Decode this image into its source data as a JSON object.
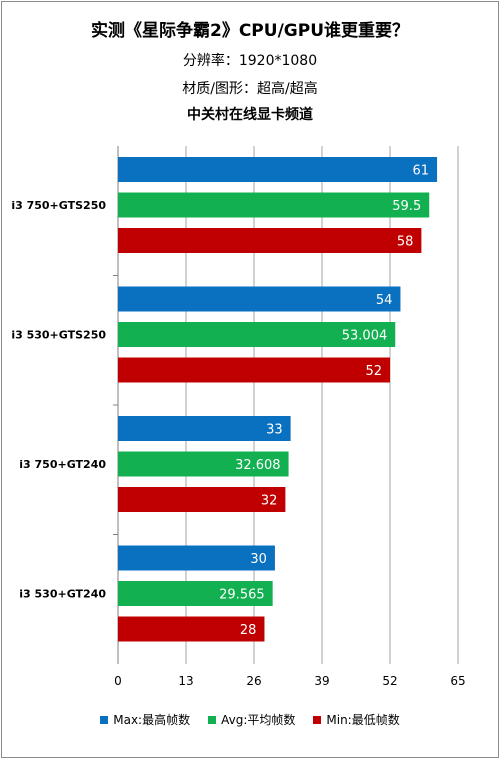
{
  "titles": {
    "main": "实测《星际争霸2》CPU/GPU谁更重要？",
    "resolution": "分辨率：1920*1080",
    "quality": "材质/图形：超高/超高",
    "source": "中关村在线显卡频道"
  },
  "colors": {
    "max": "#0a70c0",
    "avg": "#12b050",
    "min": "#c00000",
    "grid": "#a6a6a6"
  },
  "chart_data": {
    "type": "bar",
    "orientation": "horizontal",
    "categories": [
      "i3 750+GTS250",
      "i3 530+GTS250",
      "i3 750+GT240",
      "i3 530+GT240"
    ],
    "series": [
      {
        "name": "Max:最高帧数",
        "values": [
          61,
          54,
          33,
          30
        ],
        "labels": [
          "61",
          "54",
          "33",
          "30"
        ]
      },
      {
        "name": "Avg:平均帧数",
        "values": [
          59.5,
          53.004,
          32.608,
          29.565
        ],
        "labels": [
          "59.5",
          "53.004",
          "32.608",
          "29.565"
        ]
      },
      {
        "name": "Min:最低帧数",
        "values": [
          58,
          52,
          32,
          28
        ],
        "labels": [
          "58",
          "52",
          "32",
          "28"
        ]
      }
    ],
    "xlim": [
      0,
      65
    ],
    "xticks": [
      0,
      13,
      26,
      39,
      52,
      65
    ],
    "grid": true,
    "legend": "bottom"
  }
}
